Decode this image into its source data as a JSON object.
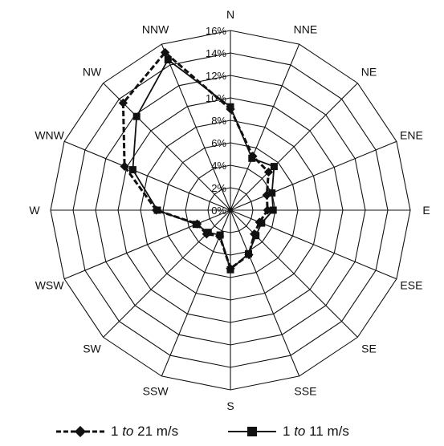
{
  "chart_data": {
    "type": "radar",
    "directions": [
      "N",
      "NNE",
      "NE",
      "ENE",
      "E",
      "ESE",
      "SE",
      "SSE",
      "S",
      "SSW",
      "SW",
      "WSW",
      "W",
      "WNW",
      "NW",
      "NNW"
    ],
    "radial_ticks": [
      "0%",
      "2%",
      "4%",
      "6%",
      "8%",
      "10%",
      "12%",
      "14%",
      "16%"
    ],
    "rmax": 16,
    "series": [
      {
        "name": "1 to 21 m/s",
        "style": "dashed-diamond",
        "values": [
          9.0,
          5.2,
          4.8,
          3.5,
          3.3,
          2.8,
          3.0,
          4.3,
          5.2,
          2.5,
          3.0,
          3.2,
          6.6,
          10.2,
          13.5,
          15.2
        ]
      },
      {
        "name": "1 to 11 m/s",
        "style": "solid-square",
        "values": [
          9.2,
          5.0,
          5.5,
          4.0,
          3.8,
          3.0,
          3.2,
          4.2,
          5.3,
          2.4,
          2.8,
          3.3,
          6.5,
          9.4,
          11.8,
          14.5
        ]
      }
    ]
  },
  "legend": {
    "item1": {
      "prefix": "1",
      "italic": "to",
      "suffix": "21 m/s"
    },
    "item2": {
      "prefix": "1",
      "italic": "to",
      "suffix": "11 m/s"
    }
  }
}
